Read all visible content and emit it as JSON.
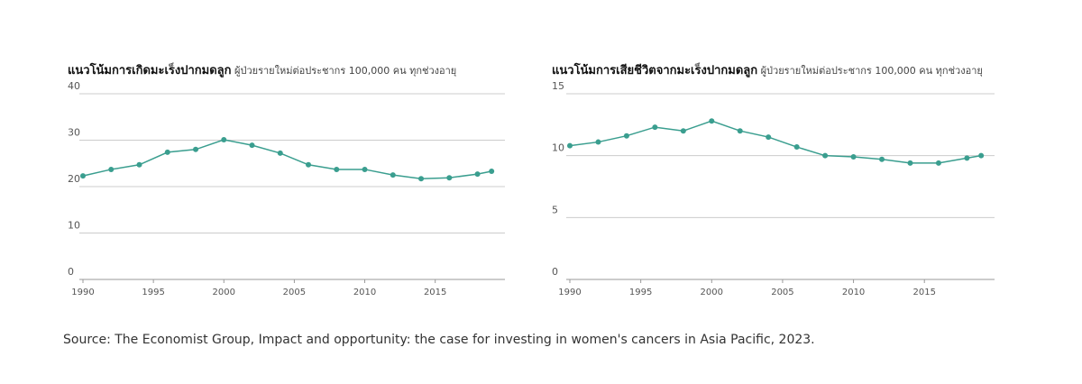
{
  "chart_data": [
    {
      "type": "line",
      "title": "แนวโน้มการเกิดมะเร็งปากมดลูก",
      "subtitle": "ผู้ป่วยรายใหม่ต่อประชากร 100,000 คน ทุกช่วงอายุ",
      "x": [
        1990,
        1992,
        1994,
        1996,
        1998,
        2000,
        2002,
        2004,
        2006,
        2008,
        2010,
        2012,
        2014,
        2016,
        2018,
        2019
      ],
      "series": [
        {
          "color": "#3a9e8f",
          "values": [
            22.3,
            23.7,
            24.7,
            27.4,
            28.0,
            30.1,
            28.9,
            27.2,
            24.7,
            23.7,
            23.7,
            22.5,
            21.7,
            21.9,
            22.7,
            23.3
          ]
        }
      ],
      "xlim": [
        1990,
        2019.5
      ],
      "xticks": [
        1990,
        1995,
        2000,
        2005,
        2010,
        2015
      ],
      "ylim": [
        0,
        40
      ],
      "yticks": [
        0,
        10,
        20,
        30,
        40
      ],
      "grid": true
    },
    {
      "type": "line",
      "title": "แนวโน้มการเสียชีวิตจากมะเร็งปากมดลูก",
      "subtitle": "ผู้ป่วยรายใหม่ต่อประชากร 100,000 คน ทุกช่วงอายุ",
      "x": [
        1990,
        1992,
        1994,
        1996,
        1998,
        2000,
        2002,
        2004,
        2006,
        2008,
        2010,
        2012,
        2014,
        2016,
        2018,
        2019
      ],
      "series": [
        {
          "color": "#3a9e8f",
          "values": [
            10.8,
            11.1,
            11.6,
            12.3,
            12.0,
            12.8,
            12.0,
            11.5,
            10.7,
            10.0,
            9.9,
            9.7,
            9.4,
            9.4,
            9.8,
            10.0
          ]
        }
      ],
      "xlim": [
        1990,
        2019.5
      ],
      "xticks": [
        1990,
        1995,
        2000,
        2005,
        2010,
        2015
      ],
      "ylim": [
        0,
        15
      ],
      "yticks": [
        0,
        5,
        10,
        15
      ],
      "grid": true
    }
  ],
  "source": "Source: The Economist Group, Impact and opportunity: the case for investing in women's cancers in Asia Pacific, 2023."
}
